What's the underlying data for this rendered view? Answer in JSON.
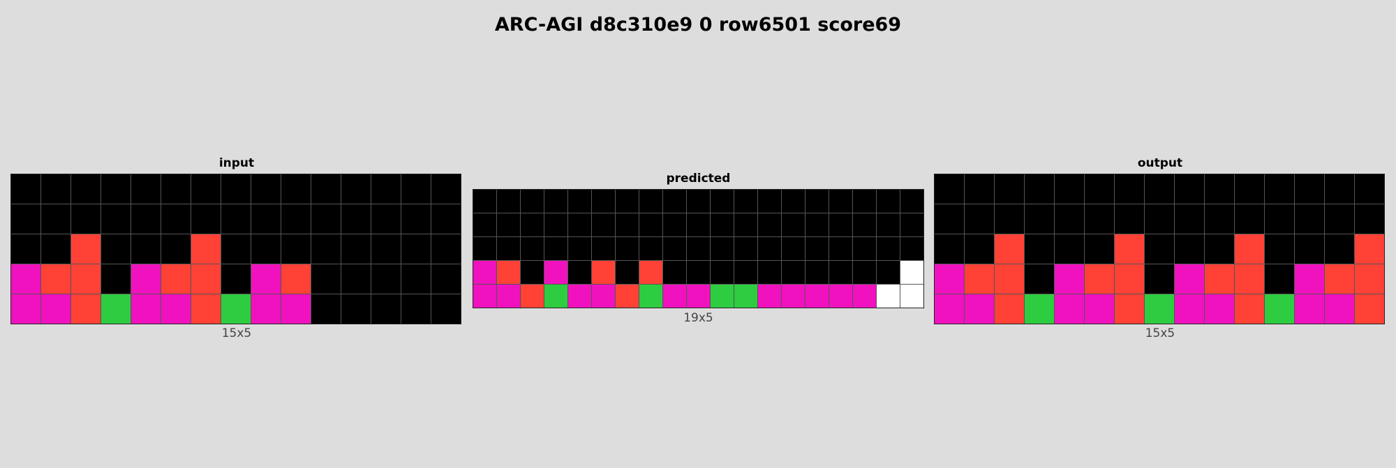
{
  "title": "ARC-AGI d8c310e9 0 row6501 score69",
  "palette": {
    "0": "#000000",
    "1": "#0074d9",
    "2": "#ff4136",
    "3": "#2ecc40",
    "4": "#ffdc00",
    "5": "#aaaaaa",
    "6": "#f012be",
    "7": "#ff851b",
    "8": "#7fdbff",
    "9": "#870c25",
    "w": "#ffffff"
  },
  "panels": [
    {
      "title": "input",
      "dims": "15x5",
      "grid": [
        [
          0,
          0,
          0,
          0,
          0,
          0,
          0,
          0,
          0,
          0,
          0,
          0,
          0,
          0,
          0
        ],
        [
          0,
          0,
          0,
          0,
          0,
          0,
          0,
          0,
          0,
          0,
          0,
          0,
          0,
          0,
          0
        ],
        [
          0,
          0,
          2,
          0,
          0,
          0,
          2,
          0,
          0,
          0,
          0,
          0,
          0,
          0,
          0
        ],
        [
          6,
          2,
          2,
          0,
          6,
          2,
          2,
          0,
          6,
          2,
          0,
          0,
          0,
          0,
          0
        ],
        [
          6,
          6,
          2,
          3,
          6,
          6,
          2,
          3,
          6,
          6,
          0,
          0,
          0,
          0,
          0
        ]
      ]
    },
    {
      "title": "predicted",
      "dims": "19x5",
      "grid": [
        [
          0,
          0,
          0,
          0,
          0,
          0,
          0,
          0,
          0,
          0,
          0,
          0,
          0,
          0,
          0,
          0,
          0,
          0,
          0
        ],
        [
          0,
          0,
          0,
          0,
          0,
          0,
          0,
          0,
          0,
          0,
          0,
          0,
          0,
          0,
          0,
          0,
          0,
          0,
          0
        ],
        [
          0,
          0,
          0,
          0,
          0,
          0,
          0,
          0,
          0,
          0,
          0,
          0,
          0,
          0,
          0,
          0,
          0,
          0,
          0
        ],
        [
          6,
          2,
          0,
          6,
          0,
          2,
          0,
          2,
          0,
          0,
          0,
          0,
          0,
          0,
          0,
          0,
          0,
          0,
          "w"
        ],
        [
          6,
          6,
          2,
          3,
          6,
          6,
          2,
          3,
          6,
          6,
          3,
          3,
          6,
          6,
          6,
          6,
          6,
          "w",
          "w"
        ]
      ]
    },
    {
      "title": "output",
      "dims": "15x5",
      "grid": [
        [
          0,
          0,
          0,
          0,
          0,
          0,
          0,
          0,
          0,
          0,
          0,
          0,
          0,
          0,
          0
        ],
        [
          0,
          0,
          0,
          0,
          0,
          0,
          0,
          0,
          0,
          0,
          0,
          0,
          0,
          0,
          0
        ],
        [
          0,
          0,
          2,
          0,
          0,
          0,
          2,
          0,
          0,
          0,
          2,
          0,
          0,
          0,
          2
        ],
        [
          6,
          2,
          2,
          0,
          6,
          2,
          2,
          0,
          6,
          2,
          2,
          0,
          6,
          2,
          2
        ],
        [
          6,
          6,
          2,
          3,
          6,
          6,
          2,
          3,
          6,
          6,
          2,
          3,
          6,
          6,
          2
        ]
      ]
    }
  ]
}
